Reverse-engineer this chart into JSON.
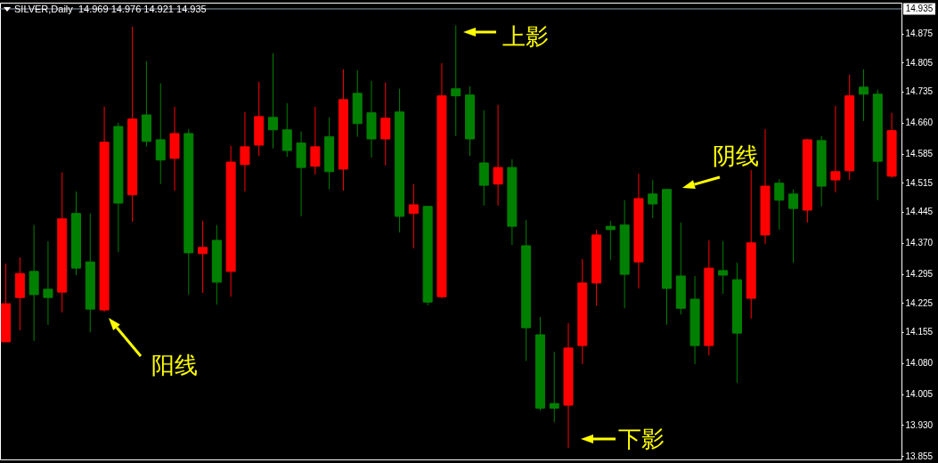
{
  "chart_data": {
    "type": "candlestick",
    "title": "SILVER,Daily  14.969 14.976 14.921 14.935",
    "categories": [
      null,
      null,
      null,
      null,
      null,
      null,
      null,
      null,
      null,
      null,
      null,
      null,
      null,
      null,
      null,
      null,
      null,
      null,
      null,
      null,
      null,
      null,
      null,
      null,
      null,
      null,
      null,
      null,
      null,
      null,
      null,
      null,
      null,
      null,
      null,
      null,
      null,
      null,
      null,
      null,
      null,
      null,
      null,
      null,
      null,
      null,
      null,
      null,
      null,
      null,
      null,
      null,
      null,
      null,
      null,
      null,
      null,
      null,
      null,
      null,
      null,
      null,
      null,
      null
    ],
    "ohlc": [
      [
        14.131,
        14.32,
        14.131,
        14.223
      ],
      [
        14.238,
        14.335,
        14.159,
        14.296
      ],
      [
        14.301,
        14.413,
        14.133,
        14.245
      ],
      [
        14.258,
        14.374,
        14.172,
        14.238
      ],
      [
        14.251,
        14.54,
        14.202,
        14.428
      ],
      [
        14.441,
        14.494,
        14.292,
        14.309
      ],
      [
        14.324,
        14.441,
        14.154,
        14.21
      ],
      [
        14.208,
        14.699,
        14.204,
        14.613
      ],
      [
        14.651,
        14.66,
        14.348,
        14.466
      ],
      [
        14.486,
        14.892,
        14.421,
        14.669
      ],
      [
        14.679,
        14.809,
        14.602,
        14.615
      ],
      [
        14.619,
        14.755,
        14.512,
        14.57
      ],
      [
        14.574,
        14.699,
        14.496,
        14.634
      ],
      [
        14.634,
        14.645,
        14.245,
        14.346
      ],
      [
        14.344,
        14.423,
        14.249,
        14.359
      ],
      [
        14.376,
        14.413,
        14.221,
        14.275
      ],
      [
        14.301,
        14.604,
        14.24,
        14.565
      ],
      [
        14.559,
        14.686,
        14.494,
        14.602
      ],
      [
        14.606,
        14.759,
        14.58,
        14.675
      ],
      [
        14.673,
        14.828,
        14.598,
        14.643
      ],
      [
        14.643,
        14.707,
        14.578,
        14.593
      ],
      [
        14.611,
        14.639,
        14.434,
        14.552
      ],
      [
        14.555,
        14.699,
        14.535,
        14.602
      ],
      [
        14.626,
        14.673,
        14.499,
        14.542
      ],
      [
        14.548,
        14.789,
        14.496,
        14.716
      ],
      [
        14.731,
        14.787,
        14.626,
        14.658
      ],
      [
        14.684,
        14.761,
        14.576,
        14.621
      ],
      [
        14.621,
        14.757,
        14.557,
        14.671
      ],
      [
        14.686,
        14.742,
        14.395,
        14.434
      ],
      [
        14.441,
        14.512,
        14.357,
        14.462
      ],
      [
        14.458,
        14.458,
        14.219,
        14.227
      ],
      [
        14.24,
        14.804,
        14.236,
        14.725
      ],
      [
        14.742,
        14.895,
        14.628,
        14.725
      ],
      [
        14.727,
        14.748,
        14.58,
        14.621
      ],
      [
        14.563,
        14.69,
        14.46,
        14.509
      ],
      [
        14.512,
        14.703,
        14.46,
        14.552
      ],
      [
        14.552,
        14.572,
        14.365,
        14.41
      ],
      [
        14.363,
        14.425,
        14.085,
        14.165
      ],
      [
        14.148,
        14.191,
        13.965,
        13.971
      ],
      [
        13.982,
        14.107,
        13.937,
        13.971
      ],
      [
        13.978,
        14.176,
        13.875,
        14.116
      ],
      [
        14.122,
        14.331,
        14.077,
        14.273
      ],
      [
        14.273,
        14.402,
        14.219,
        14.389
      ],
      [
        14.41,
        14.423,
        14.329,
        14.402
      ],
      [
        14.413,
        14.473,
        14.212,
        14.294
      ],
      [
        14.324,
        14.537,
        14.26,
        14.477
      ],
      [
        14.488,
        14.522,
        14.43,
        14.464
      ],
      [
        14.499,
        14.499,
        14.172,
        14.26
      ],
      [
        14.29,
        14.419,
        14.197,
        14.212
      ],
      [
        14.234,
        14.29,
        14.077,
        14.122
      ],
      [
        14.122,
        14.376,
        14.098,
        14.309
      ],
      [
        14.303,
        14.374,
        14.247,
        14.292
      ],
      [
        14.281,
        14.322,
        14.032,
        14.152
      ],
      [
        14.236,
        14.546,
        14.187,
        14.37
      ],
      [
        14.389,
        14.645,
        14.367,
        14.507
      ],
      [
        14.514,
        14.524,
        14.402,
        14.473
      ],
      [
        14.488,
        14.499,
        14.322,
        14.453
      ],
      [
        14.449,
        14.621,
        14.419,
        14.619
      ],
      [
        14.617,
        14.628,
        14.458,
        14.507
      ],
      [
        14.522,
        14.701,
        14.492,
        14.542
      ],
      [
        14.544,
        14.776,
        14.522,
        14.725
      ],
      [
        14.746,
        14.789,
        14.664,
        14.729
      ],
      [
        14.729,
        14.74,
        14.473,
        14.567
      ],
      [
        14.531,
        14.684,
        14.527,
        14.641
      ]
    ],
    "colors": [
      "#ff0000",
      "#ff0000",
      "#008000",
      "#008000",
      "#ff0000",
      "#008000",
      "#008000",
      "#ff0000",
      "#008000",
      "#ff0000",
      "#008000",
      "#008000",
      "#ff0000",
      "#008000",
      "#ff0000",
      "#008000",
      "#ff0000",
      "#ff0000",
      "#ff0000",
      "#008000",
      "#008000",
      "#008000",
      "#ff0000",
      "#008000",
      "#ff0000",
      "#008000",
      "#008000",
      "#ff0000",
      "#008000",
      "#ff0000",
      "#008000",
      "#ff0000",
      "#008000",
      "#008000",
      "#008000",
      "#ff0000",
      "#008000",
      "#008000",
      "#008000",
      "#008000",
      "#ff0000",
      "#ff0000",
      "#ff0000",
      "#008000",
      "#008000",
      "#ff0000",
      "#008000",
      "#008000",
      "#008000",
      "#008000",
      "#ff0000",
      "#008000",
      "#008000",
      "#ff0000",
      "#ff0000",
      "#008000",
      "#008000",
      "#ff0000",
      "#008000",
      "#ff0000",
      "#ff0000",
      "#008000",
      "#008000",
      "#ff0000"
    ],
    "ylim": [
      13.847,
      14.95
    ],
    "yticks": [
      13.855,
      {
        "value": 13.93,
        "label": "13.930"
      },
      14.005,
      {
        "value": 14.08,
        "label": "14.080"
      },
      14.155,
      14.225,
      14.295,
      {
        "value": 14.37,
        "label": "14.370"
      },
      14.445,
      14.515,
      14.585,
      {
        "value": 14.66,
        "label": "14.660"
      },
      14.735,
      14.805,
      14.875
    ],
    "tick_labels": "y",
    "ref_lines": [
      {
        "axis": "y",
        "value": 14.935,
        "label": "14.935",
        "color": "#8c9cb0"
      }
    ],
    "annotations": [
      "上影",
      "下影",
      "阳线",
      "阴线"
    ]
  }
}
